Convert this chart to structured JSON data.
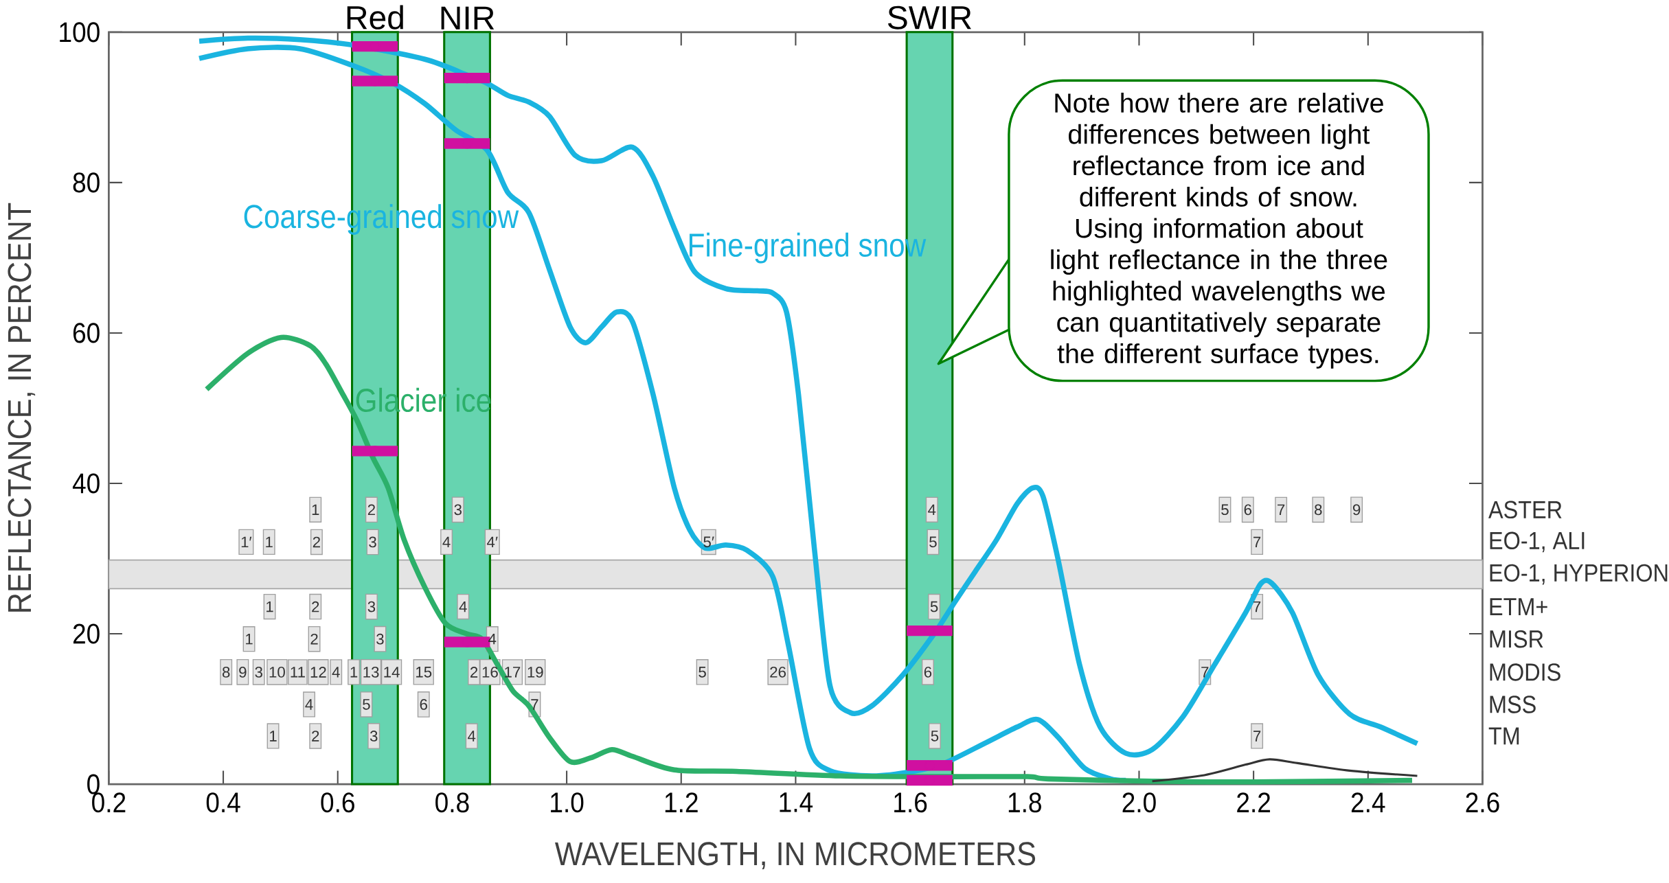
{
  "chart_data": {
    "type": "line",
    "xlabel": "WAVELENGTH, IN MICROMETERS",
    "ylabel": "REFLECTANCE, IN PERCENT",
    "xlim": [
      0.2,
      2.6
    ],
    "ylim": [
      0,
      100
    ],
    "xticks": [
      0.2,
      0.4,
      0.6,
      0.8,
      {
        "value": 1,
        "label": "1.0"
      },
      1.2,
      1.4,
      1.6,
      1.8,
      {
        "value": 2,
        "label": "2.0"
      },
      2.2,
      2.4,
      2.6
    ],
    "yticks": [
      0,
      20,
      40,
      60,
      80,
      100
    ],
    "series": [
      {
        "name": "Fine-grained snow",
        "color": "#1ab4e0",
        "x": [
          0.358,
          0.443,
          0.534,
          0.625,
          0.752,
          0.826,
          0.861,
          0.897,
          0.934,
          0.97,
          1.015,
          1.061,
          1.115,
          1.151,
          1.188,
          1.224,
          1.278,
          1.333,
          1.36,
          1.384,
          1.405,
          1.433,
          1.46,
          1.496,
          1.533,
          1.587,
          1.642,
          1.678,
          1.714,
          1.751,
          1.787,
          1.814,
          1.832,
          1.859,
          1.896,
          1.932,
          1.977,
          2.023,
          2.077,
          2.132,
          2.186,
          2.213,
          2.232,
          2.268,
          2.313,
          2.368,
          2.422,
          2.486
        ],
        "values": [
          98.8,
          99.2,
          99.0,
          98.3,
          96.4,
          94.3,
          93.2,
          91.6,
          90.7,
          88.8,
          83.6,
          82.9,
          84.7,
          80.8,
          73.9,
          68.1,
          65.9,
          65.6,
          65.3,
          62.8,
          51.8,
          31.1,
          13.1,
          9.5,
          10.4,
          14.5,
          20.0,
          24.2,
          28.3,
          32.5,
          37.3,
          39.4,
          38.3,
          29.7,
          15.9,
          7.6,
          4.1,
          4.6,
          9.0,
          15.9,
          22.8,
          26.7,
          26.7,
          22.8,
          14.5,
          9.3,
          7.6,
          5.4
        ]
      },
      {
        "name": "Coarse-grained snow",
        "color": "#1ab4e0",
        "x": [
          0.358,
          0.443,
          0.534,
          0.625,
          0.697,
          0.752,
          0.806,
          0.861,
          0.897,
          0.934,
          0.97,
          1.006,
          1.033,
          1.061,
          1.088,
          1.115,
          1.151,
          1.188,
          1.215,
          1.242,
          1.278,
          1.315,
          1.36,
          1.387,
          1.424,
          1.46,
          1.533,
          1.605,
          1.66,
          1.732,
          1.787,
          1.823,
          1.859,
          1.905,
          1.95,
          1.977
        ],
        "values": [
          96.5,
          97.8,
          97.8,
          95.6,
          93.2,
          90.5,
          87.0,
          84.3,
          78.7,
          76.0,
          68.4,
          60.8,
          58.7,
          60.8,
          62.8,
          61.5,
          51.8,
          39.4,
          33.8,
          31.4,
          31.8,
          31.1,
          27.6,
          18.6,
          4.8,
          1.8,
          1.1,
          1.7,
          2.8,
          5.5,
          7.6,
          8.6,
          6.2,
          2.1,
          0.7,
          0.5
        ]
      },
      {
        "name": "Glacier ice",
        "color": "#2cb06a",
        "x": [
          0.371,
          0.443,
          0.501,
          0.552,
          0.579,
          0.607,
          0.634,
          0.661,
          0.688,
          0.716,
          0.752,
          0.788,
          0.825,
          0.852,
          0.879,
          0.906,
          0.934,
          0.97,
          1.006,
          1.042,
          1.079,
          1.115,
          1.188,
          1.297,
          1.478,
          1.66,
          1.805,
          1.841,
          2.023,
          2.204,
          2.477
        ],
        "values": [
          52.5,
          57.3,
          59.4,
          58.3,
          55.9,
          52.1,
          48.3,
          43.5,
          39.4,
          32.5,
          26.2,
          21.4,
          20.0,
          19.3,
          15.9,
          12.4,
          10.4,
          6.2,
          3.0,
          3.5,
          4.6,
          3.7,
          1.9,
          1.7,
          1.1,
          1.0,
          1.0,
          0.7,
          0.4,
          0.3,
          0.5
        ]
      },
      {
        "color": "#333333",
        "x": [
          2.023,
          2.114,
          2.186,
          2.228,
          2.277,
          2.368,
          2.486
        ],
        "values": [
          0.4,
          1.2,
          2.6,
          3.3,
          2.8,
          1.8,
          1.1
        ]
      },
      {
        "color": "#d010a0",
        "type": "scatter",
        "xerrors": [
          0.04,
          0.04,
          0.04,
          0.04,
          0.04,
          0.04,
          0.04,
          0.04,
          0.04
        ],
        "x": [
          0.665,
          0.665,
          0.665,
          0.826,
          0.826,
          0.826,
          1.634,
          1.634,
          1.634
        ],
        "values": [
          98.1,
          93.5,
          44.3,
          93.9,
          85.2,
          18.9,
          20.4,
          2.5,
          0.5
        ]
      }
    ],
    "bands": [
      {
        "axis": "y",
        "from": 26.0,
        "to": 29.8,
        "color": "#e4e4e4"
      },
      {
        "axis": "x",
        "from": 0.625,
        "to": 0.705,
        "label": "Red",
        "color": "#66d4b0"
      },
      {
        "axis": "x",
        "from": 0.786,
        "to": 0.866,
        "label": "NIR",
        "color": "#66d4b0"
      },
      {
        "axis": "x",
        "from": 1.594,
        "to": 1.674,
        "label": "SWIR",
        "color": "#66d4b0"
      }
    ],
    "annotations": [
      "Note how there are relative differences between light reflectance from ice and different kinds of snow. Using information about light reflectance in the three highlighted wavelengths we can quantitatively separate the different surface types.",
      "ASTER",
      "EO-1, ALI",
      "EO-1, HYPERION",
      "ETM+",
      "MISR",
      "MODIS",
      "MSS",
      "TM",
      {
        "text": "1",
        "x": 0.561,
        "y": 36.5
      },
      {
        "text": "2",
        "x": 0.659,
        "y": 36.5
      },
      {
        "text": "3",
        "x": 0.81,
        "y": 36.5
      },
      {
        "text": "4",
        "x": 1.638,
        "y": 36.5
      },
      {
        "text": "5",
        "x": 2.15,
        "y": 36.5
      },
      {
        "text": "6",
        "x": 2.19,
        "y": 36.5
      },
      {
        "text": "7",
        "x": 2.248,
        "y": 36.5
      },
      {
        "text": "8",
        "x": 2.313,
        "y": 36.5
      },
      {
        "text": "9",
        "x": 2.38,
        "y": 36.5
      },
      {
        "text": "1′",
        "x": 0.44,
        "y": 32.2
      },
      {
        "text": "1",
        "x": 0.48,
        "y": 32.2
      },
      {
        "text": "2",
        "x": 0.563,
        "y": 32.2
      },
      {
        "text": "3",
        "x": 0.661,
        "y": 32.2
      },
      {
        "text": "4",
        "x": 0.79,
        "y": 32.2
      },
      {
        "text": "4′",
        "x": 0.87,
        "y": 32.2
      },
      {
        "text": "5′",
        "x": 1.248,
        "y": 32.2
      },
      {
        "text": "5",
        "x": 1.64,
        "y": 32.2
      },
      {
        "text": "7",
        "x": 2.206,
        "y": 32.2
      },
      {
        "text": "1",
        "x": 0.481,
        "y": 23.6
      },
      {
        "text": "2",
        "x": 0.561,
        "y": 23.6
      },
      {
        "text": "3",
        "x": 0.659,
        "y": 23.6
      },
      {
        "text": "4",
        "x": 0.819,
        "y": 23.6
      },
      {
        "text": "5",
        "x": 1.642,
        "y": 23.6
      },
      {
        "text": "7",
        "x": 2.206,
        "y": 23.6
      },
      {
        "text": "1",
        "x": 0.445,
        "y": 19.3
      },
      {
        "text": "2",
        "x": 0.559,
        "y": 19.3
      },
      {
        "text": "3",
        "x": 0.674,
        "y": 19.3
      },
      {
        "text": "4",
        "x": 0.87,
        "y": 19.3
      },
      {
        "text": "8",
        "x": 0.405,
        "y": 14.9
      },
      {
        "text": "9",
        "x": 0.434,
        "y": 14.9
      },
      {
        "text": "3",
        "x": 0.462,
        "y": 14.9
      },
      {
        "text": "10",
        "x": 0.494,
        "y": 14.9
      },
      {
        "text": "11",
        "x": 0.53,
        "y": 14.9
      },
      {
        "text": "12",
        "x": 0.566,
        "y": 14.9
      },
      {
        "text": "4",
        "x": 0.597,
        "y": 14.9
      },
      {
        "text": "1",
        "x": 0.628,
        "y": 14.9
      },
      {
        "text": "13",
        "x": 0.658,
        "y": 14.9
      },
      {
        "text": "14",
        "x": 0.694,
        "y": 14.9
      },
      {
        "text": "15",
        "x": 0.75,
        "y": 14.9
      },
      {
        "text": "2",
        "x": 0.838,
        "y": 14.9
      },
      {
        "text": "16",
        "x": 0.866,
        "y": 14.9
      },
      {
        "text": "17",
        "x": 0.905,
        "y": 14.9
      },
      {
        "text": "19",
        "x": 0.945,
        "y": 14.9
      },
      {
        "text": "5",
        "x": 1.237,
        "y": 14.9
      },
      {
        "text": "26",
        "x": 1.369,
        "y": 14.9
      },
      {
        "text": "6",
        "x": 1.631,
        "y": 14.9
      },
      {
        "text": "7",
        "x": 2.115,
        "y": 14.9
      },
      {
        "text": "4",
        "x": 0.55,
        "y": 10.6
      },
      {
        "text": "5",
        "x": 0.65,
        "y": 10.6
      },
      {
        "text": "6",
        "x": 0.75,
        "y": 10.6
      },
      {
        "text": "7",
        "x": 0.944,
        "y": 10.6
      },
      {
        "text": "1",
        "x": 0.487,
        "y": 6.4
      },
      {
        "text": "2",
        "x": 0.561,
        "y": 6.4
      },
      {
        "text": "3",
        "x": 0.663,
        "y": 6.4
      },
      {
        "text": "4",
        "x": 0.834,
        "y": 6.4
      },
      {
        "text": "5",
        "x": 1.643,
        "y": 6.4
      },
      {
        "text": "7",
        "x": 2.206,
        "y": 6.4
      }
    ]
  }
}
